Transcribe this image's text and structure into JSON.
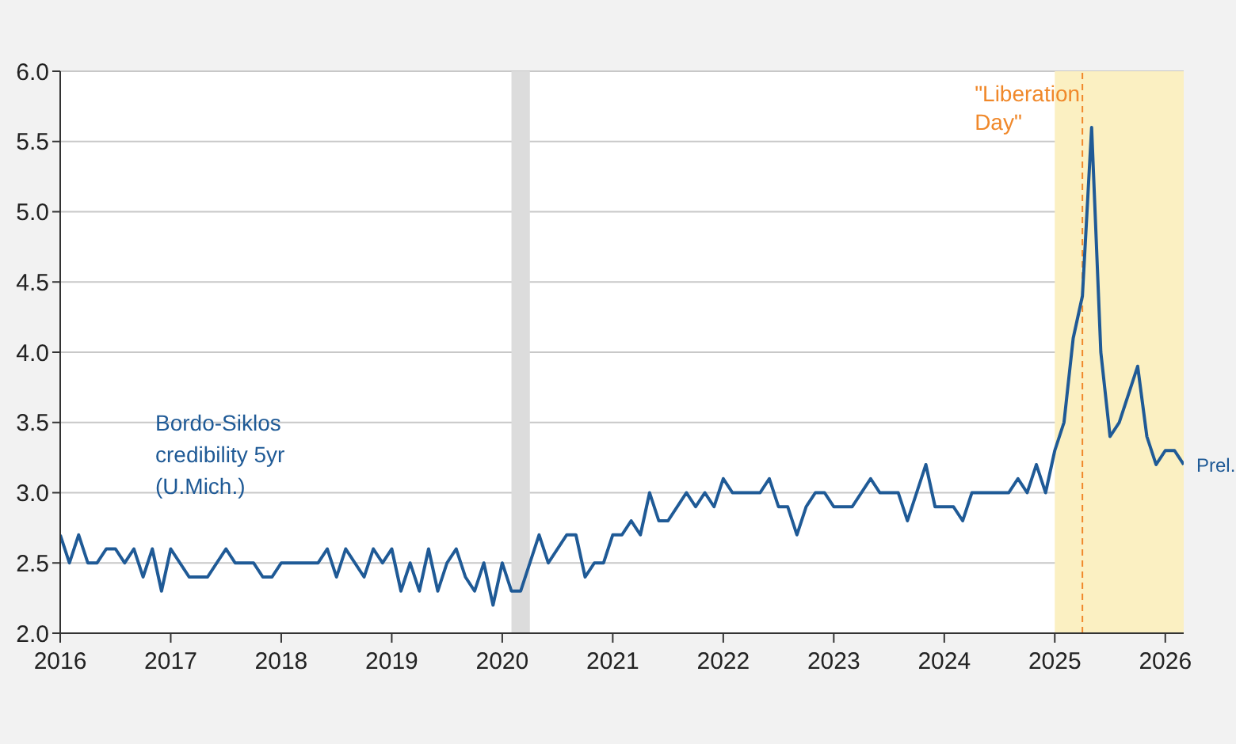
{
  "chart_data": {
    "type": "line",
    "x": [
      "2016-01",
      "2016-02",
      "2016-03",
      "2016-04",
      "2016-05",
      "2016-06",
      "2016-07",
      "2016-08",
      "2016-09",
      "2016-10",
      "2016-11",
      "2016-12",
      "2017-01",
      "2017-02",
      "2017-03",
      "2017-04",
      "2017-05",
      "2017-06",
      "2017-07",
      "2017-08",
      "2017-09",
      "2017-10",
      "2017-11",
      "2017-12",
      "2018-01",
      "2018-02",
      "2018-03",
      "2018-04",
      "2018-05",
      "2018-06",
      "2018-07",
      "2018-08",
      "2018-09",
      "2018-10",
      "2018-11",
      "2018-12",
      "2019-01",
      "2019-02",
      "2019-03",
      "2019-04",
      "2019-05",
      "2019-06",
      "2019-07",
      "2019-08",
      "2019-09",
      "2019-10",
      "2019-11",
      "2019-12",
      "2020-01",
      "2020-02",
      "2020-03",
      "2020-04",
      "2020-05",
      "2020-06",
      "2020-07",
      "2020-08",
      "2020-09",
      "2020-10",
      "2020-11",
      "2020-12",
      "2021-01",
      "2021-02",
      "2021-03",
      "2021-04",
      "2021-05",
      "2021-06",
      "2021-07",
      "2021-08",
      "2021-09",
      "2021-10",
      "2021-11",
      "2021-12",
      "2022-01",
      "2022-02",
      "2022-03",
      "2022-04",
      "2022-05",
      "2022-06",
      "2022-07",
      "2022-08",
      "2022-09",
      "2022-10",
      "2022-11",
      "2022-12",
      "2023-01",
      "2023-02",
      "2023-03",
      "2023-04",
      "2023-05",
      "2023-06",
      "2023-07",
      "2023-08",
      "2023-09",
      "2023-10",
      "2023-11",
      "2023-12",
      "2024-01",
      "2024-02",
      "2024-03",
      "2024-04",
      "2024-05",
      "2024-06",
      "2024-07",
      "2024-08",
      "2024-09",
      "2024-10",
      "2024-11",
      "2024-12",
      "2025-01",
      "2025-02",
      "2025-03",
      "2025-04",
      "2025-05",
      "2025-06",
      "2025-07",
      "2025-08",
      "2025-09",
      "2025-10",
      "2025-11",
      "2025-12",
      "2026-01",
      "2026-02",
      "2026-03"
    ],
    "series": [
      {
        "name": "Bordo-Siklos credibility 5yr (U.Mich.)",
        "color": "#1f5a96",
        "values": [
          2.7,
          2.5,
          2.7,
          2.5,
          2.5,
          2.6,
          2.6,
          2.5,
          2.6,
          2.4,
          2.6,
          2.3,
          2.6,
          2.5,
          2.4,
          2.4,
          2.4,
          2.5,
          2.6,
          2.5,
          2.5,
          2.5,
          2.4,
          2.4,
          2.5,
          2.5,
          2.5,
          2.5,
          2.5,
          2.6,
          2.4,
          2.6,
          2.5,
          2.4,
          2.6,
          2.5,
          2.6,
          2.3,
          2.5,
          2.3,
          2.6,
          2.3,
          2.5,
          2.6,
          2.4,
          2.3,
          2.5,
          2.2,
          2.5,
          2.3,
          2.3,
          2.5,
          2.7,
          2.5,
          2.6,
          2.7,
          2.7,
          2.4,
          2.5,
          2.5,
          2.7,
          2.7,
          2.8,
          2.7,
          3.0,
          2.8,
          2.8,
          2.9,
          3.0,
          2.9,
          3.0,
          2.9,
          3.1,
          3.0,
          3.0,
          3.0,
          3.0,
          3.1,
          2.9,
          2.9,
          2.7,
          2.9,
          3.0,
          3.0,
          2.9,
          2.9,
          2.9,
          3.0,
          3.1,
          3.0,
          3.0,
          3.0,
          2.8,
          3.0,
          3.2,
          2.9,
          2.9,
          2.9,
          2.8,
          3.0,
          3.0,
          3.0,
          3.0,
          3.0,
          3.1,
          3.0,
          3.2,
          3.0,
          3.3,
          3.5,
          4.1,
          4.4,
          5.6,
          4.0,
          3.4,
          3.5,
          3.7,
          3.9,
          3.4,
          3.2,
          3.3,
          3.3,
          3.2
        ]
      }
    ],
    "xlim": [
      "2016-01",
      "2026-03"
    ],
    "xticks": [
      {
        "value": "2016",
        "label": "2016"
      },
      {
        "value": "2017",
        "label": "2017"
      },
      {
        "value": "2018",
        "label": "2018"
      },
      {
        "value": "2019",
        "label": "2019"
      },
      {
        "value": "2020",
        "label": "2020"
      },
      {
        "value": "2021",
        "label": "2021"
      },
      {
        "value": "2022",
        "label": "2022"
      },
      {
        "value": "2023",
        "label": "2023"
      },
      {
        "value": "2024",
        "label": "2024"
      },
      {
        "value": "2025",
        "label": "2025"
      },
      {
        "value": "2026",
        "label": "2026"
      }
    ],
    "ylim": [
      2.0,
      6.0
    ],
    "yticks": [
      {
        "value": 2,
        "label": "2.0"
      },
      {
        "value": 2.5,
        "label": "2.5"
      },
      {
        "value": 3,
        "label": "3.0"
      },
      {
        "value": 3.5,
        "label": "3.5"
      },
      {
        "value": 4,
        "label": "4.0"
      },
      {
        "value": 4.5,
        "label": "4.5"
      },
      {
        "value": 5,
        "label": "5.0"
      },
      {
        "value": 5.5,
        "label": "5.5"
      },
      {
        "value": 6,
        "label": "6.0"
      }
    ],
    "grid": "y",
    "legend": false,
    "marker": "none",
    "line_style": "solid",
    "bands": [
      {
        "axis": "x",
        "from": "2020-02",
        "to": "2020-04",
        "label": null,
        "color": "#dcdcdc"
      },
      {
        "axis": "x",
        "from": "2025-01",
        "to": "2026-03",
        "label": null,
        "color": "#fbf0c2"
      }
    ],
    "ref_lines": [
      {
        "axis": "x",
        "value": "2025-04",
        "label": "\"Liberation Day\"",
        "color": "#f0882a",
        "line_style": "dashed"
      }
    ],
    "annotations": [
      {
        "text": "Prel.",
        "x": "2026-03",
        "y": 3.2
      }
    ]
  }
}
